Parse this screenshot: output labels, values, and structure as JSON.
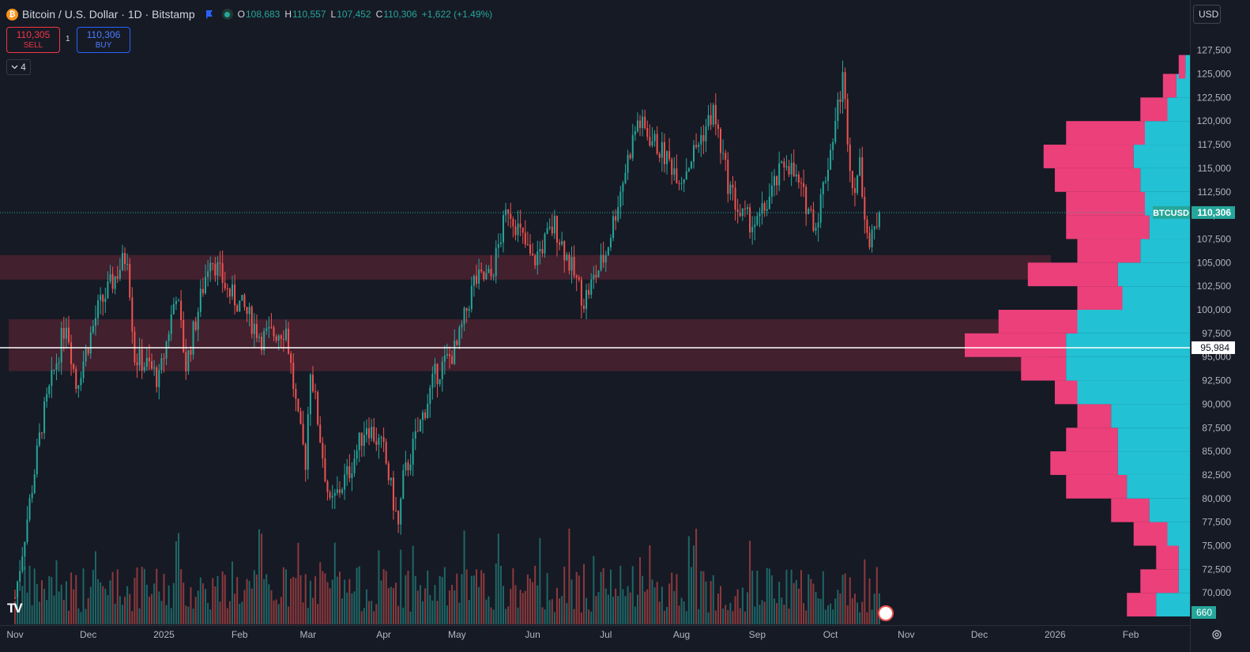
{
  "header": {
    "symbol": "Bitcoin / U.S. Dollar · 1D · Bitstamp",
    "logo_letter": "₿",
    "open_label": "O",
    "open": "108,683",
    "high_label": "H",
    "high": "110,557",
    "low_label": "L",
    "low": "107,452",
    "close_label": "C",
    "close": "110,306",
    "change": "+1,622 (+1.49%)"
  },
  "trade": {
    "sell_price": "110,305",
    "sell_label": "SELL",
    "spread": "1",
    "buy_price": "110,306",
    "buy_label": "BUY"
  },
  "indicators_count": "4",
  "currency": "USD",
  "colors": {
    "up": "#26a69a",
    "down": "#ef5350",
    "bg": "#161a25",
    "zone": "#4a2230",
    "vp_up": "#22c1d4",
    "vp_down": "#ec407a"
  },
  "icons": [
    "bitcoin-icon",
    "flag-icon",
    "market-status-icon",
    "chevron-down-icon",
    "tradingview-logo-icon",
    "gear-icon",
    "events-icon"
  ],
  "chart_data": {
    "type": "candlestick",
    "symbol": "BTCUSD",
    "timeframe": "1D",
    "y_scale": "linear",
    "y_range": [
      67500,
      130000
    ],
    "y_ticks": [
      "70,000",
      "72,500",
      "75,000",
      "77,500",
      "80,000",
      "82,500",
      "85,000",
      "87,500",
      "90,000",
      "92,500",
      "95,000",
      "97,500",
      "100,000",
      "102,500",
      "105,000",
      "107,500",
      "110,000",
      "112,500",
      "115,000",
      "117,500",
      "120,000",
      "122,500",
      "125,000",
      "127,500"
    ],
    "x_ticks": [
      "Nov",
      "Dec",
      "2025",
      "Feb",
      "Mar",
      "Apr",
      "May",
      "Jun",
      "Jul",
      "Aug",
      "Sep",
      "Oct",
      "Nov",
      "Dec",
      "2026",
      "Feb"
    ],
    "price_tag_label": "BTCUSD",
    "last_price": "110,306",
    "last_price_value": 110306,
    "horizontal_line_label": "95,984",
    "horizontal_line_value": 95984,
    "volume_badge": "660",
    "zones": [
      {
        "low": 103200,
        "high": 105800
      },
      {
        "low": 93500,
        "high": 99000
      }
    ],
    "anchors": [
      [
        "2024-11-01",
        69500
      ],
      [
        "2024-11-12",
        88000
      ],
      [
        "2024-11-22",
        99000
      ],
      [
        "2024-11-26",
        92000
      ],
      [
        "2024-12-05",
        100000
      ],
      [
        "2024-12-17",
        106000
      ],
      [
        "2024-12-20",
        95000
      ],
      [
        "2024-12-26",
        94000
      ],
      [
        "2024-12-30",
        92500
      ],
      [
        "2025-01-06",
        102000
      ],
      [
        "2025-01-10",
        94000
      ],
      [
        "2025-01-20",
        106000
      ],
      [
        "2025-01-27",
        102000
      ],
      [
        "2025-02-03",
        100000
      ],
      [
        "2025-02-10",
        97000
      ],
      [
        "2025-02-20",
        98000
      ],
      [
        "2025-02-25",
        88000
      ],
      [
        "2025-02-28",
        84000
      ],
      [
        "2025-03-02",
        94000
      ],
      [
        "2025-03-10",
        79000
      ],
      [
        "2025-03-18",
        83000
      ],
      [
        "2025-03-25",
        88000
      ],
      [
        "2025-04-01",
        85000
      ],
      [
        "2025-04-07",
        77000
      ],
      [
        "2025-04-09",
        82000
      ],
      [
        "2025-04-22",
        93000
      ],
      [
        "2025-05-01",
        96000
      ],
      [
        "2025-05-08",
        103000
      ],
      [
        "2025-05-15",
        103500
      ],
      [
        "2025-05-22",
        111000
      ],
      [
        "2025-06-01",
        105000
      ],
      [
        "2025-06-10",
        109000
      ],
      [
        "2025-06-22",
        101000
      ],
      [
        "2025-07-01",
        106000
      ],
      [
        "2025-07-10",
        116000
      ],
      [
        "2025-07-14",
        120000
      ],
      [
        "2025-08-01",
        114000
      ],
      [
        "2025-08-14",
        121000
      ],
      [
        "2025-08-20",
        113500
      ],
      [
        "2025-08-25",
        110000
      ],
      [
        "2025-09-01",
        109000
      ],
      [
        "2025-09-13",
        116000
      ],
      [
        "2025-09-25",
        109000
      ],
      [
        "2025-10-01",
        117000
      ],
      [
        "2025-10-06",
        124500
      ],
      [
        "2025-10-10",
        113000
      ],
      [
        "2025-10-13",
        115000
      ],
      [
        "2025-10-17",
        106500
      ],
      [
        "2025-10-21",
        110306
      ]
    ],
    "volume_profile": [
      [
        68750,
        0.15,
        0.28
      ],
      [
        71250,
        0.05,
        0.22
      ],
      [
        73750,
        0.05,
        0.15
      ],
      [
        76250,
        0.1,
        0.25
      ],
      [
        78750,
        0.18,
        0.35
      ],
      [
        81250,
        0.28,
        0.55
      ],
      [
        83750,
        0.32,
        0.62
      ],
      [
        86250,
        0.32,
        0.55
      ],
      [
        88750,
        0.35,
        0.5
      ],
      [
        91250,
        0.5,
        0.6
      ],
      [
        93750,
        0.55,
        0.75
      ],
      [
        96250,
        0.55,
        1.0
      ],
      [
        98750,
        0.5,
        0.85
      ],
      [
        101250,
        0.3,
        0.5
      ],
      [
        103750,
        0.32,
        0.72
      ],
      [
        106250,
        0.22,
        0.5
      ],
      [
        108750,
        0.18,
        0.55
      ],
      [
        111250,
        0.2,
        0.55
      ],
      [
        113750,
        0.22,
        0.6
      ],
      [
        116250,
        0.25,
        0.65
      ],
      [
        118750,
        0.2,
        0.55
      ],
      [
        121250,
        0.1,
        0.22
      ],
      [
        123750,
        0.06,
        0.12
      ],
      [
        125750,
        0.02,
        0.05
      ]
    ]
  }
}
